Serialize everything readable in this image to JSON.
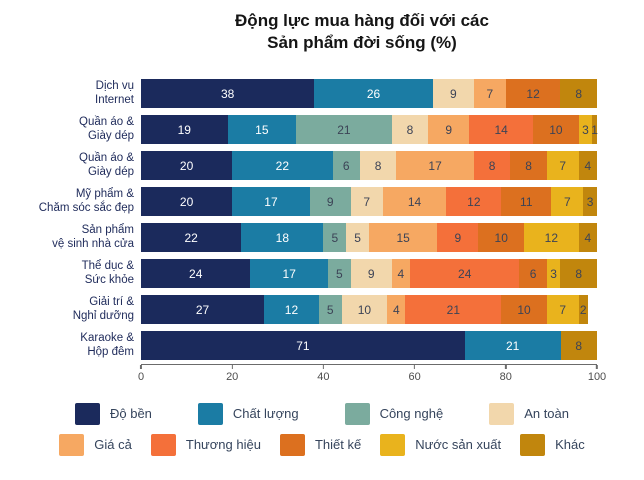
{
  "title": {
    "line1": "Động lực mua hàng đối với các",
    "line2": "Sản phẩm đời sống (%)"
  },
  "chart_data": {
    "type": "bar",
    "variant": "horizontal-stacked",
    "title": "Động lực mua hàng đối với các Sản phẩm đời sống (%)",
    "unit": "%",
    "xlim": [
      0,
      100
    ],
    "x_ticks": [
      0,
      20,
      40,
      60,
      80,
      100
    ],
    "grid": false,
    "legend_position": "bottom",
    "series": [
      {
        "name": "Độ bền",
        "color": "#1b2a5c",
        "value_text": "light"
      },
      {
        "name": "Chất lượng",
        "color": "#1b7ca4",
        "value_text": "light"
      },
      {
        "name": "Công nghệ",
        "color": "#7bab9e",
        "value_text": "dark"
      },
      {
        "name": "An toàn",
        "color": "#f2d7ac",
        "value_text": "dark"
      },
      {
        "name": "Giá cả",
        "color": "#f6a862",
        "value_text": "dark"
      },
      {
        "name": "Thương hiệu",
        "color": "#f4703a",
        "value_text": "dark"
      },
      {
        "name": "Thiết kế",
        "color": "#dc701f",
        "value_text": "dark"
      },
      {
        "name": "Nước sản xuất",
        "color": "#e9b31d",
        "value_text": "dark"
      },
      {
        "name": "Khác",
        "color": "#c1860d",
        "value_text": "dark"
      }
    ],
    "legend_rows": [
      4,
      5
    ],
    "categories": [
      "Dịch vụ Internet",
      "Quần áo & Giày dép",
      "Quần áo & Giày dép",
      "Mỹ phẩm & Chăm sóc sắc đẹp",
      "Sản phẩm vệ sinh nhà cửa",
      "Thể dục & Sức khỏe",
      "Giải trí & Nghỉ dưỡng",
      "Karaoke & Hộp đêm"
    ],
    "rows": [
      {
        "label_lines": [
          "Dịch vụ",
          "Internet"
        ],
        "segments": [
          [
            "Độ bền",
            38
          ],
          [
            "Chất lượng",
            26
          ],
          [
            "An toàn",
            9
          ],
          [
            "Giá cả",
            7
          ],
          [
            "Thiết kế",
            12
          ],
          [
            "Khác",
            8
          ]
        ]
      },
      {
        "label_lines": [
          "Quần áo &",
          "Giày dép"
        ],
        "segments": [
          [
            "Độ bền",
            19
          ],
          [
            "Chất lượng",
            15
          ],
          [
            "Công nghệ",
            21
          ],
          [
            "An toàn",
            8
          ],
          [
            "Giá cả",
            9
          ],
          [
            "Thương hiệu",
            14
          ],
          [
            "Thiết kế",
            10
          ],
          [
            "Nước sản xuất",
            3
          ],
          [
            "Khác",
            1
          ]
        ]
      },
      {
        "label_lines": [
          "Quần áo &",
          "Giày dép"
        ],
        "segments": [
          [
            "Độ bền",
            20
          ],
          [
            "Chất lượng",
            22
          ],
          [
            "Công nghệ",
            6
          ],
          [
            "An toàn",
            8
          ],
          [
            "Giá cả",
            17
          ],
          [
            "Thương hiệu",
            8
          ],
          [
            "Thiết kế",
            8
          ],
          [
            "Nước sản xuất",
            7
          ],
          [
            "Khác",
            4
          ]
        ]
      },
      {
        "label_lines": [
          "Mỹ phẩm &",
          "Chăm sóc sắc đẹp"
        ],
        "segments": [
          [
            "Độ bền",
            20
          ],
          [
            "Chất lượng",
            17
          ],
          [
            "Công nghệ",
            9
          ],
          [
            "An toàn",
            7
          ],
          [
            "Giá cả",
            14
          ],
          [
            "Thương hiệu",
            12
          ],
          [
            "Thiết kế",
            11
          ],
          [
            "Nước sản xuất",
            7
          ],
          [
            "Khác",
            3
          ]
        ]
      },
      {
        "label_lines": [
          "Sản phẩm",
          "vệ sinh nhà cửa"
        ],
        "segments": [
          [
            "Độ bền",
            22
          ],
          [
            "Chất lượng",
            18
          ],
          [
            "Công nghệ",
            5
          ],
          [
            "An toàn",
            5
          ],
          [
            "Giá cả",
            15
          ],
          [
            "Thương hiệu",
            9
          ],
          [
            "Thiết kế",
            10
          ],
          [
            "Nước sản xuất",
            12
          ],
          [
            "Khác",
            4
          ]
        ]
      },
      {
        "label_lines": [
          "Thể dục &",
          "Sức khỏe"
        ],
        "segments": [
          [
            "Độ bền",
            24
          ],
          [
            "Chất lượng",
            17
          ],
          [
            "Công nghệ",
            5
          ],
          [
            "An toàn",
            9
          ],
          [
            "Giá cả",
            4
          ],
          [
            "Thương hiệu",
            24
          ],
          [
            "Thiết kế",
            6
          ],
          [
            "Nước sản xuất",
            3
          ],
          [
            "Khác",
            8
          ]
        ]
      },
      {
        "label_lines": [
          "Giải trí &",
          "Nghỉ dưỡng"
        ],
        "segments": [
          [
            "Độ bền",
            27
          ],
          [
            "Chất lượng",
            12
          ],
          [
            "Công nghệ",
            5
          ],
          [
            "An toàn",
            10
          ],
          [
            "Giá cả",
            4
          ],
          [
            "Thương hiệu",
            21
          ],
          [
            "Thiết kế",
            10
          ],
          [
            "Nước sản xuất",
            7
          ],
          [
            "Khác",
            2
          ]
        ]
      },
      {
        "label_lines": [
          "Karaoke &",
          "Hộp đêm"
        ],
        "segments": [
          [
            "Độ bền",
            71
          ],
          [
            "Chất lượng",
            21
          ],
          [
            "Khác",
            8
          ]
        ]
      }
    ]
  }
}
